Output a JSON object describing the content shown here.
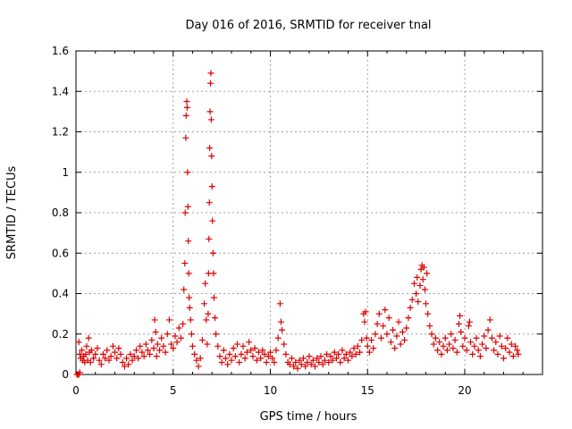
{
  "chart_data": {
    "type": "scatter",
    "title": "Day 016 of 2016, SRMTID for receiver tnal",
    "xlabel": "GPS time / hours",
    "ylabel": "SRMTID / TECUs",
    "xlim": [
      0,
      24
    ],
    "ylim": [
      0,
      1.6
    ],
    "x_ticks": [
      0,
      5,
      10,
      15,
      20
    ],
    "x_tick_labels": [
      "0",
      "5",
      "10",
      "15",
      "20"
    ],
    "y_ticks": [
      0,
      0.2,
      0.4,
      0.6,
      0.8,
      1.0,
      1.2,
      1.4,
      1.6
    ],
    "y_tick_labels": [
      "0",
      "0.2",
      "0.4",
      "0.6",
      "0.8",
      "1",
      "1.2",
      "1.4",
      "1.6"
    ],
    "grid": true,
    "marker": "+",
    "marker_color": "#dd0000",
    "series": [
      {
        "name": "SRMTID",
        "points": [
          [
            0.05,
            0.0
          ],
          [
            0.1,
            0.0
          ],
          [
            0.15,
            0.0
          ],
          [
            0.2,
            0.01
          ],
          [
            0.15,
            0.16
          ],
          [
            0.2,
            0.1
          ],
          [
            0.25,
            0.08
          ],
          [
            0.3,
            0.12
          ],
          [
            0.35,
            0.07
          ],
          [
            0.4,
            0.09
          ],
          [
            0.45,
            0.06
          ],
          [
            0.5,
            0.1
          ],
          [
            0.55,
            0.14
          ],
          [
            0.6,
            0.07
          ],
          [
            0.65,
            0.18
          ],
          [
            0.7,
            0.11
          ],
          [
            0.75,
            0.06
          ],
          [
            0.8,
            0.12
          ],
          [
            0.9,
            0.08
          ],
          [
            1.0,
            0.1
          ],
          [
            1.1,
            0.13
          ],
          [
            1.2,
            0.07
          ],
          [
            1.3,
            0.05
          ],
          [
            1.4,
            0.1
          ],
          [
            1.5,
            0.08
          ],
          [
            1.6,
            0.12
          ],
          [
            1.7,
            0.07
          ],
          [
            1.8,
            0.09
          ],
          [
            1.9,
            0.14
          ],
          [
            2.0,
            0.11
          ],
          [
            2.1,
            0.08
          ],
          [
            2.2,
            0.13
          ],
          [
            2.3,
            0.1
          ],
          [
            2.4,
            0.06
          ],
          [
            2.5,
            0.04
          ],
          [
            2.6,
            0.08
          ],
          [
            2.7,
            0.05
          ],
          [
            2.8,
            0.1
          ],
          [
            2.9,
            0.07
          ],
          [
            3.0,
            0.09
          ],
          [
            3.1,
            0.12
          ],
          [
            3.2,
            0.08
          ],
          [
            3.3,
            0.14
          ],
          [
            3.4,
            0.11
          ],
          [
            3.5,
            0.09
          ],
          [
            3.6,
            0.15
          ],
          [
            3.7,
            0.12
          ],
          [
            3.8,
            0.1
          ],
          [
            3.9,
            0.17
          ],
          [
            4.0,
            0.13
          ],
          [
            4.05,
            0.27
          ],
          [
            4.1,
            0.21
          ],
          [
            4.15,
            0.09
          ],
          [
            4.2,
            0.15
          ],
          [
            4.3,
            0.12
          ],
          [
            4.4,
            0.18
          ],
          [
            4.5,
            0.14
          ],
          [
            4.6,
            0.11
          ],
          [
            4.7,
            0.2
          ],
          [
            4.8,
            0.27
          ],
          [
            4.9,
            0.15
          ],
          [
            5.0,
            0.13
          ],
          [
            5.1,
            0.19
          ],
          [
            5.2,
            0.16
          ],
          [
            5.3,
            0.23
          ],
          [
            5.4,
            0.18
          ],
          [
            5.5,
            0.25
          ],
          [
            5.55,
            0.42
          ],
          [
            5.6,
            0.55
          ],
          [
            5.62,
            0.8
          ],
          [
            5.65,
            1.17
          ],
          [
            5.67,
            1.28
          ],
          [
            5.7,
            1.35
          ],
          [
            5.72,
            1.32
          ],
          [
            5.74,
            1.0
          ],
          [
            5.76,
            0.83
          ],
          [
            5.78,
            0.66
          ],
          [
            5.8,
            0.5
          ],
          [
            5.82,
            0.38
          ],
          [
            5.85,
            0.33
          ],
          [
            5.9,
            0.27
          ],
          [
            5.95,
            0.2
          ],
          [
            6.0,
            0.14
          ],
          [
            6.1,
            0.1
          ],
          [
            6.2,
            0.07
          ],
          [
            6.3,
            0.04
          ],
          [
            6.4,
            0.08
          ],
          [
            6.5,
            0.17
          ],
          [
            6.6,
            0.35
          ],
          [
            6.65,
            0.45
          ],
          [
            6.7,
            0.27
          ],
          [
            6.75,
            0.15
          ],
          [
            6.8,
            0.3
          ],
          [
            6.82,
            0.5
          ],
          [
            6.84,
            0.67
          ],
          [
            6.86,
            0.85
          ],
          [
            6.88,
            1.12
          ],
          [
            6.9,
            1.3
          ],
          [
            6.92,
            1.44
          ],
          [
            6.94,
            1.49
          ],
          [
            6.96,
            1.26
          ],
          [
            6.98,
            1.08
          ],
          [
            7.0,
            0.93
          ],
          [
            7.02,
            0.76
          ],
          [
            7.05,
            0.6
          ],
          [
            7.08,
            0.5
          ],
          [
            7.1,
            0.38
          ],
          [
            7.15,
            0.28
          ],
          [
            7.2,
            0.2
          ],
          [
            7.3,
            0.14
          ],
          [
            7.4,
            0.09
          ],
          [
            7.5,
            0.06
          ],
          [
            7.6,
            0.12
          ],
          [
            7.7,
            0.08
          ],
          [
            7.8,
            0.05
          ],
          [
            7.9,
            0.1
          ],
          [
            8.0,
            0.07
          ],
          [
            8.1,
            0.13
          ],
          [
            8.2,
            0.09
          ],
          [
            8.3,
            0.15
          ],
          [
            8.4,
            0.06
          ],
          [
            8.5,
            0.1
          ],
          [
            8.6,
            0.14
          ],
          [
            8.7,
            0.08
          ],
          [
            8.8,
            0.11
          ],
          [
            8.9,
            0.16
          ],
          [
            9.0,
            0.12
          ],
          [
            9.1,
            0.09
          ],
          [
            9.2,
            0.13
          ],
          [
            9.3,
            0.07
          ],
          [
            9.4,
            0.11
          ],
          [
            9.5,
            0.08
          ],
          [
            9.6,
            0.12
          ],
          [
            9.7,
            0.1
          ],
          [
            9.8,
            0.06
          ],
          [
            9.9,
            0.09
          ],
          [
            10.0,
            0.11
          ],
          [
            10.1,
            0.08
          ],
          [
            10.2,
            0.06
          ],
          [
            10.3,
            0.12
          ],
          [
            10.4,
            0.18
          ],
          [
            10.5,
            0.35
          ],
          [
            10.55,
            0.26
          ],
          [
            10.6,
            0.22
          ],
          [
            10.7,
            0.15
          ],
          [
            10.8,
            0.1
          ],
          [
            10.9,
            0.06
          ],
          [
            11.0,
            0.05
          ],
          [
            11.1,
            0.08
          ],
          [
            11.2,
            0.04
          ],
          [
            11.3,
            0.06
          ],
          [
            11.4,
            0.03
          ],
          [
            11.5,
            0.07
          ],
          [
            11.6,
            0.05
          ],
          [
            11.7,
            0.08
          ],
          [
            11.8,
            0.04
          ],
          [
            11.9,
            0.06
          ],
          [
            12.0,
            0.09
          ],
          [
            12.1,
            0.05
          ],
          [
            12.2,
            0.07
          ],
          [
            12.3,
            0.04
          ],
          [
            12.4,
            0.08
          ],
          [
            12.5,
            0.06
          ],
          [
            12.6,
            0.09
          ],
          [
            12.7,
            0.05
          ],
          [
            12.8,
            0.07
          ],
          [
            12.9,
            0.1
          ],
          [
            13.0,
            0.06
          ],
          [
            13.1,
            0.09
          ],
          [
            13.2,
            0.07
          ],
          [
            13.3,
            0.11
          ],
          [
            13.4,
            0.08
          ],
          [
            13.5,
            0.1
          ],
          [
            13.6,
            0.06
          ],
          [
            13.7,
            0.12
          ],
          [
            13.8,
            0.08
          ],
          [
            13.9,
            0.1
          ],
          [
            14.0,
            0.07
          ],
          [
            14.1,
            0.11
          ],
          [
            14.2,
            0.09
          ],
          [
            14.3,
            0.13
          ],
          [
            14.4,
            0.1
          ],
          [
            14.5,
            0.14
          ],
          [
            14.6,
            0.11
          ],
          [
            14.7,
            0.17
          ],
          [
            14.8,
            0.3
          ],
          [
            14.85,
            0.26
          ],
          [
            14.9,
            0.31
          ],
          [
            14.95,
            0.18
          ],
          [
            15.0,
            0.14
          ],
          [
            15.1,
            0.11
          ],
          [
            15.2,
            0.17
          ],
          [
            15.3,
            0.13
          ],
          [
            15.4,
            0.2
          ],
          [
            15.5,
            0.25
          ],
          [
            15.6,
            0.3
          ],
          [
            15.7,
            0.18
          ],
          [
            15.8,
            0.24
          ],
          [
            15.9,
            0.32
          ],
          [
            16.0,
            0.2
          ],
          [
            16.1,
            0.28
          ],
          [
            16.2,
            0.16
          ],
          [
            16.3,
            0.22
          ],
          [
            16.4,
            0.13
          ],
          [
            16.5,
            0.19
          ],
          [
            16.6,
            0.26
          ],
          [
            16.7,
            0.15
          ],
          [
            16.8,
            0.21
          ],
          [
            16.9,
            0.17
          ],
          [
            17.0,
            0.23
          ],
          [
            17.1,
            0.28
          ],
          [
            17.2,
            0.33
          ],
          [
            17.3,
            0.37
          ],
          [
            17.4,
            0.45
          ],
          [
            17.5,
            0.4
          ],
          [
            17.55,
            0.48
          ],
          [
            17.6,
            0.36
          ],
          [
            17.7,
            0.44
          ],
          [
            17.75,
            0.52
          ],
          [
            17.8,
            0.54
          ],
          [
            17.85,
            0.47
          ],
          [
            17.9,
            0.53
          ],
          [
            17.95,
            0.42
          ],
          [
            18.0,
            0.35
          ],
          [
            18.05,
            0.5
          ],
          [
            18.1,
            0.3
          ],
          [
            18.2,
            0.24
          ],
          [
            18.3,
            0.2
          ],
          [
            18.4,
            0.15
          ],
          [
            18.5,
            0.18
          ],
          [
            18.6,
            0.12
          ],
          [
            18.7,
            0.16
          ],
          [
            18.8,
            0.1
          ],
          [
            18.9,
            0.14
          ],
          [
            19.0,
            0.18
          ],
          [
            19.1,
            0.12
          ],
          [
            19.2,
            0.15
          ],
          [
            19.3,
            0.2
          ],
          [
            19.4,
            0.13
          ],
          [
            19.5,
            0.17
          ],
          [
            19.6,
            0.11
          ],
          [
            19.7,
            0.25
          ],
          [
            19.75,
            0.29
          ],
          [
            19.8,
            0.21
          ],
          [
            19.9,
            0.14
          ],
          [
            20.0,
            0.18
          ],
          [
            20.1,
            0.12
          ],
          [
            20.2,
            0.24
          ],
          [
            20.25,
            0.26
          ],
          [
            20.3,
            0.16
          ],
          [
            20.4,
            0.1
          ],
          [
            20.5,
            0.14
          ],
          [
            20.6,
            0.18
          ],
          [
            20.7,
            0.12
          ],
          [
            20.8,
            0.09
          ],
          [
            20.9,
            0.15
          ],
          [
            21.0,
            0.19
          ],
          [
            21.1,
            0.13
          ],
          [
            21.2,
            0.22
          ],
          [
            21.3,
            0.27
          ],
          [
            21.4,
            0.18
          ],
          [
            21.5,
            0.12
          ],
          [
            21.6,
            0.16
          ],
          [
            21.7,
            0.1
          ],
          [
            21.8,
            0.19
          ],
          [
            21.9,
            0.14
          ],
          [
            22.0,
            0.08
          ],
          [
            22.1,
            0.13
          ],
          [
            22.2,
            0.18
          ],
          [
            22.3,
            0.11
          ],
          [
            22.4,
            0.15
          ],
          [
            22.5,
            0.09
          ],
          [
            22.6,
            0.14
          ],
          [
            22.7,
            0.12
          ],
          [
            22.75,
            0.1
          ]
        ]
      }
    ]
  }
}
